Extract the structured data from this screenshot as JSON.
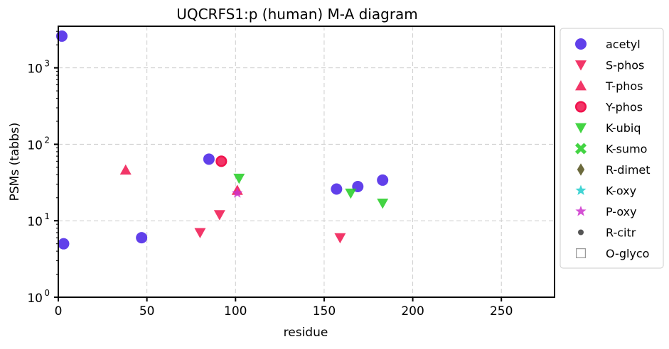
{
  "chart_data": {
    "type": "scatter",
    "title": "UQCRFS1:p (human) M-A diagram",
    "xlabel": "residue",
    "ylabel": "PSMs (tabbs)",
    "xlim": [
      0,
      280
    ],
    "ylim": [
      1,
      3500
    ],
    "yscale": "log",
    "x_ticks": [
      0,
      50,
      100,
      150,
      200,
      250
    ],
    "x_tick_labels": [
      "0",
      "50",
      "100",
      "150",
      "200",
      "250"
    ],
    "y_ticks": [
      1,
      10,
      100,
      1000
    ],
    "y_tick_labels": [
      "10",
      "10",
      "10",
      "10"
    ],
    "y_tick_exponents": [
      "0",
      "1",
      "2",
      "3"
    ],
    "grid": true,
    "legend_position": "outside-right",
    "series": [
      {
        "name": "acetyl",
        "marker": "circle",
        "color": "#3a10e5",
        "points": [
          [
            2,
            2600
          ],
          [
            3,
            5
          ],
          [
            47,
            6
          ],
          [
            85,
            64
          ],
          [
            157,
            26
          ],
          [
            169,
            28
          ],
          [
            183,
            34
          ]
        ]
      },
      {
        "name": "S-phos",
        "marker": "triangle-down",
        "color": "#f0134d",
        "points": [
          [
            80,
            7
          ],
          [
            91,
            12
          ],
          [
            159,
            6
          ]
        ]
      },
      {
        "name": "T-phos",
        "marker": "triangle-up",
        "color": "#f0134d",
        "points": [
          [
            38,
            46
          ],
          [
            101,
            25
          ]
        ]
      },
      {
        "name": "Y-phos",
        "marker": "circle-ring",
        "color": "#f0134d",
        "points": [
          [
            92,
            60
          ]
        ]
      },
      {
        "name": "K-ubiq",
        "marker": "triangle-down",
        "color": "#22cc22",
        "points": [
          [
            102,
            36
          ],
          [
            165,
            23
          ],
          [
            183,
            17
          ]
        ]
      },
      {
        "name": "K-sumo",
        "marker": "x",
        "color": "#22cc22",
        "points": []
      },
      {
        "name": "R-dimet",
        "marker": "diamond",
        "color": "#5c5a28",
        "points": []
      },
      {
        "name": "K-oxy",
        "marker": "star",
        "color": "#22cccc",
        "points": []
      },
      {
        "name": "P-oxy",
        "marker": "star",
        "color": "#cc33cc",
        "points": [
          [
            101,
            23
          ]
        ]
      },
      {
        "name": "R-citr",
        "marker": "dot",
        "color": "#555555",
        "points": []
      },
      {
        "name": "O-glyco",
        "marker": "square-open",
        "color": "#999999",
        "points": []
      }
    ]
  }
}
